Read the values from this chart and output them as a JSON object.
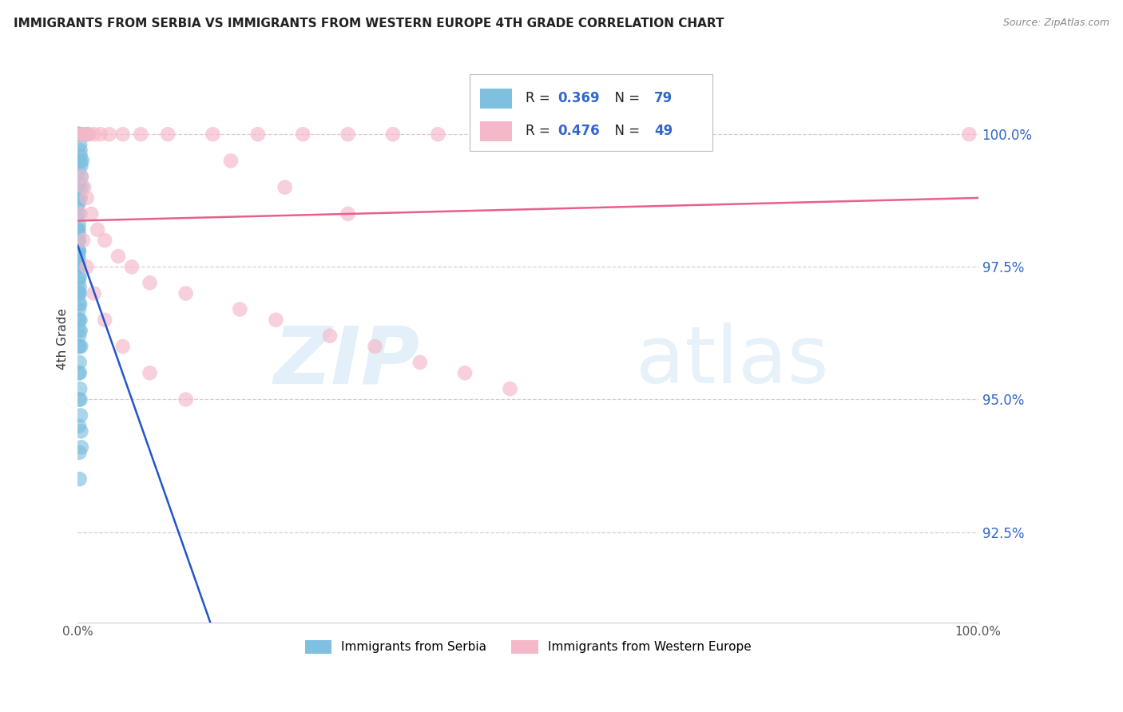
{
  "title": "IMMIGRANTS FROM SERBIA VS IMMIGRANTS FROM WESTERN EUROPE 4TH GRADE CORRELATION CHART",
  "source": "Source: ZipAtlas.com",
  "ylabel": "4th Grade",
  "y_tick_labels": [
    "92.5%",
    "95.0%",
    "97.5%",
    "100.0%"
  ],
  "y_tick_values": [
    92.5,
    95.0,
    97.5,
    100.0
  ],
  "x_min": 0.0,
  "x_max": 100.0,
  "y_min": 90.8,
  "y_max": 101.5,
  "serbia_color": "#7fbfdf",
  "western_color": "#f5b8c8",
  "serbia_R": 0.369,
  "serbia_N": 79,
  "western_R": 0.476,
  "western_N": 49,
  "serbia_line_color": "#2255cc",
  "western_line_color": "#e8608a",
  "legend_label_serbia": "Immigrants from Serbia",
  "legend_label_western": "Immigrants from Western Europe",
  "watermark_zip": "ZIP",
  "watermark_atlas": "atlas",
  "grid_color": "#ddbbbb",
  "tick_color": "#3366cc"
}
